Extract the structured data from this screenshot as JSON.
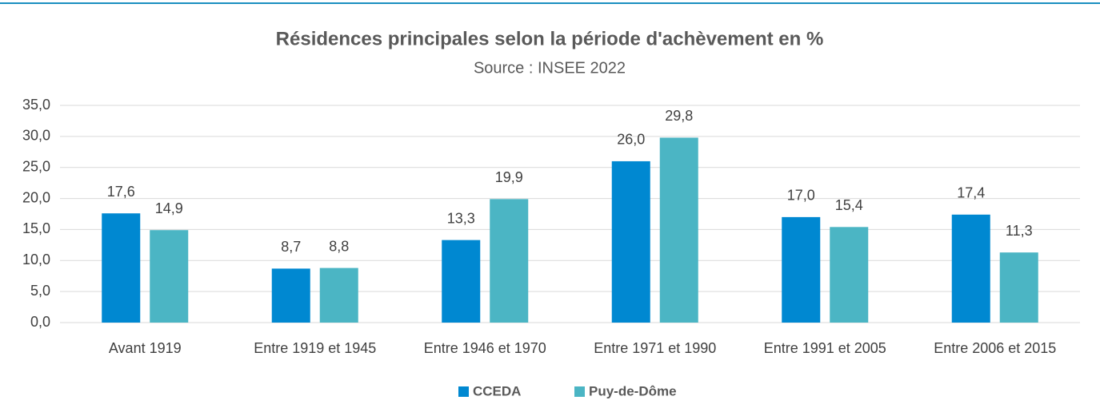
{
  "chart_data": {
    "type": "bar",
    "title": "Résidences principales selon la période d'achèvement en %",
    "subtitle": "Source : INSEE 2022",
    "categories": [
      "Avant 1919",
      "Entre 1919 et 1945",
      "Entre 1946 et 1970",
      "Entre 1971 et 1990",
      "Entre 1991 et 2005",
      "Entre 2006 et 2015"
    ],
    "series": [
      {
        "name": "CCEDA",
        "color": "#0088d1",
        "values": [
          17.6,
          8.7,
          13.3,
          26.0,
          17.0,
          17.4
        ],
        "value_labels": [
          "17,6",
          "8,7",
          "13,3",
          "26,0",
          "17,0",
          "17,4"
        ]
      },
      {
        "name": "Puy-de-Dôme",
        "color": "#4bb5c4",
        "values": [
          14.9,
          8.8,
          19.9,
          29.8,
          15.4,
          11.3
        ],
        "value_labels": [
          "14,9",
          "8,8",
          "19,9",
          "29,8",
          "15,4",
          "11,3"
        ]
      }
    ],
    "ylim": [
      0,
      35
    ],
    "yticks": [
      {
        "value": 0,
        "label": "0,0"
      },
      {
        "value": 5,
        "label": "5,0"
      },
      {
        "value": 10,
        "label": "10,0"
      },
      {
        "value": 15,
        "label": "15,0"
      },
      {
        "value": 20,
        "label": "20,0"
      },
      {
        "value": 25,
        "label": "25,0"
      },
      {
        "value": 30,
        "label": "30,0"
      },
      {
        "value": 35,
        "label": "35,0"
      }
    ],
    "grid": true,
    "legend": "bottom"
  }
}
